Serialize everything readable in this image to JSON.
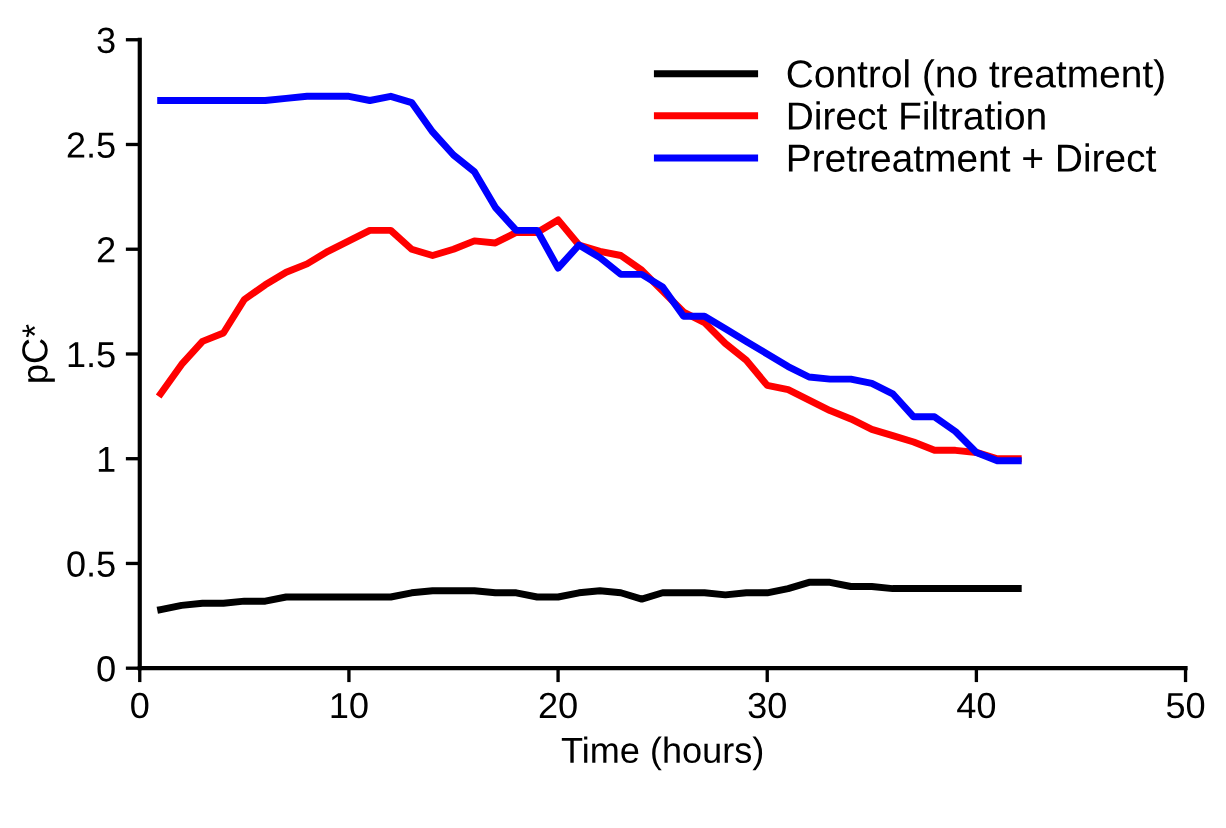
{
  "chart_data": {
    "type": "line",
    "xlabel": "Time (hours)",
    "ylabel": "pC*",
    "x": [
      1,
      2,
      3,
      4,
      5,
      6,
      7,
      8,
      9,
      10,
      11,
      12,
      13,
      14,
      15,
      16,
      17,
      18,
      19,
      20,
      21,
      22,
      23,
      24,
      25,
      26,
      27,
      28,
      29,
      30,
      31,
      32,
      33,
      34,
      35,
      36,
      37,
      38,
      39,
      40,
      41,
      42
    ],
    "series": [
      {
        "name": "Control (no treatment)",
        "color": "#000000",
        "values": [
          0.28,
          0.3,
          0.31,
          0.31,
          0.32,
          0.32,
          0.34,
          0.34,
          0.34,
          0.34,
          0.34,
          0.34,
          0.36,
          0.37,
          0.37,
          0.37,
          0.36,
          0.36,
          0.34,
          0.34,
          0.36,
          0.37,
          0.36,
          0.33,
          0.36,
          0.36,
          0.36,
          0.35,
          0.36,
          0.36,
          0.38,
          0.41,
          0.41,
          0.39,
          0.39,
          0.38,
          0.38,
          0.38,
          0.38,
          0.38,
          0.38,
          0.38
        ]
      },
      {
        "name": "Direct Filtration",
        "color": "#ff0000",
        "values": [
          1.31,
          1.45,
          1.56,
          1.6,
          1.76,
          1.83,
          1.89,
          1.93,
          1.99,
          2.04,
          2.09,
          2.09,
          2.0,
          1.97,
          2.0,
          2.04,
          2.03,
          2.08,
          2.08,
          2.14,
          2.02,
          1.99,
          1.97,
          1.9,
          1.8,
          1.7,
          1.65,
          1.55,
          1.47,
          1.35,
          1.33,
          1.28,
          1.23,
          1.19,
          1.14,
          1.11,
          1.08,
          1.04,
          1.04,
          1.03,
          1.0,
          1.0
        ]
      },
      {
        "name": "Pretreatment + Direct",
        "color": "#0000ff",
        "values": [
          2.71,
          2.71,
          2.71,
          2.71,
          2.71,
          2.71,
          2.72,
          2.73,
          2.73,
          2.73,
          2.71,
          2.73,
          2.7,
          2.56,
          2.45,
          2.37,
          2.2,
          2.09,
          2.09,
          1.91,
          2.02,
          1.96,
          1.88,
          1.88,
          1.82,
          1.68,
          1.68,
          1.62,
          1.56,
          1.5,
          1.44,
          1.39,
          1.38,
          1.38,
          1.36,
          1.31,
          1.2,
          1.2,
          1.13,
          1.03,
          0.99,
          0.99
        ]
      }
    ],
    "xlim": [
      0,
      50
    ],
    "ylim": [
      0,
      3
    ],
    "xticks": [
      0,
      10,
      20,
      30,
      40,
      50
    ],
    "yticks": [
      0,
      0.5,
      1,
      1.5,
      2,
      2.5,
      3
    ],
    "grid": false,
    "legend": "top right",
    "marker": "none",
    "line_style": "solid"
  }
}
